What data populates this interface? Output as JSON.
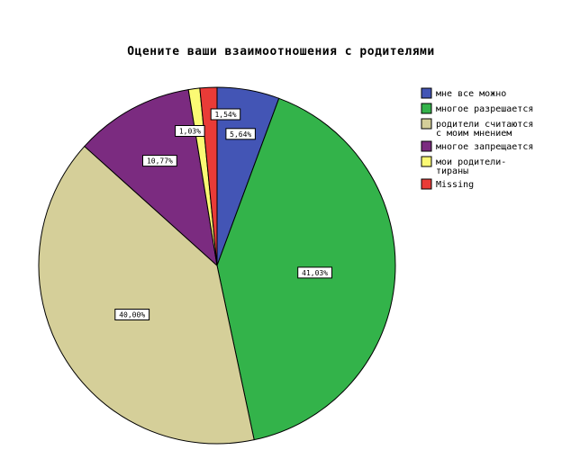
{
  "chart_data": {
    "type": "pie",
    "title": "Оцените ваши взаимоотношения с родителями",
    "slices": [
      {
        "label": "мне все можно",
        "value": 5.64,
        "display": "5,64%",
        "color": "#4355b5"
      },
      {
        "label": "многое разрешается",
        "value": 41.03,
        "display": "41,03%",
        "color": "#33b34a"
      },
      {
        "label": "родители считаются с моим мнением",
        "legend_lines": [
          "родители считаются",
          "с моим мнением"
        ],
        "value": 40.0,
        "display": "40,00%",
        "color": "#d5cf99"
      },
      {
        "label": "многое запрещается",
        "value": 10.77,
        "display": "10,77%",
        "color": "#7b2b80"
      },
      {
        "label": "мои родители-тираны",
        "legend_lines": [
          "мои родители-",
          "тираны"
        ],
        "value": 1.03,
        "display": "1,03%",
        "color": "#fbfa74"
      },
      {
        "label": "Missing",
        "value": 1.54,
        "display": "1,54%",
        "color": "#e93b37"
      }
    ],
    "legend_position": "right"
  }
}
